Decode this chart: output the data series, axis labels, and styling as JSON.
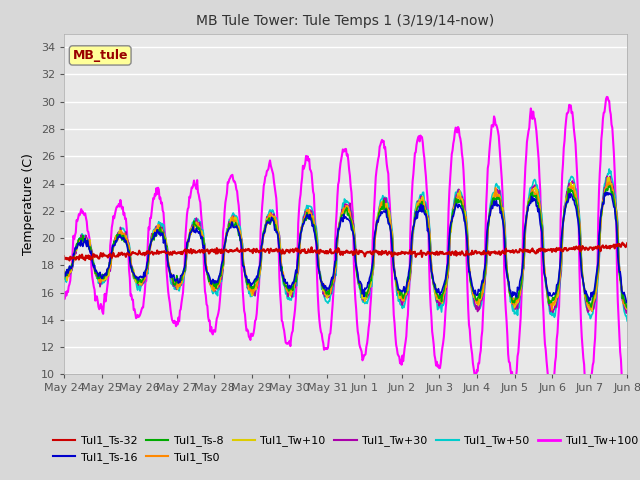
{
  "title": "MB Tule Tower: Tule Temps 1 (3/19/14-now)",
  "ylabel": "Temperature (C)",
  "ylim": [
    10,
    35
  ],
  "yticks": [
    10,
    12,
    14,
    16,
    18,
    20,
    22,
    24,
    26,
    28,
    30,
    32,
    34
  ],
  "background_color": "#d8d8d8",
  "plot_background": "#e8e8e8",
  "grid_color": "#ffffff",
  "legend_label": "MB_tule",
  "series_order": [
    "Tul1_Ts-32",
    "Tul1_Ts-16",
    "Tul1_Ts-8",
    "Tul1_Ts0",
    "Tul1_Tw+10",
    "Tul1_Tw+30",
    "Tul1_Tw+50",
    "Tul1_Tw+100"
  ],
  "series": {
    "Tul1_Ts-32": {
      "color": "#cc0000",
      "lw": 1.5
    },
    "Tul1_Ts-16": {
      "color": "#0000cc",
      "lw": 1.2
    },
    "Tul1_Ts-8": {
      "color": "#00aa00",
      "lw": 1.2
    },
    "Tul1_Ts0": {
      "color": "#ff8800",
      "lw": 1.2
    },
    "Tul1_Tw+10": {
      "color": "#ddcc00",
      "lw": 1.2
    },
    "Tul1_Tw+30": {
      "color": "#aa00aa",
      "lw": 1.2
    },
    "Tul1_Tw+50": {
      "color": "#00cccc",
      "lw": 1.2
    },
    "Tul1_Tw+100": {
      "color": "#ff00ff",
      "lw": 1.5
    }
  },
  "legend_order": [
    "Tul1_Ts-32",
    "Tul1_Ts-16",
    "Tul1_Ts-8",
    "Tul1_Ts0",
    "Tul1_Tw+10",
    "Tul1_Tw+30",
    "Tul1_Tw+50",
    "Tul1_Tw+100"
  ],
  "xtick_labels": [
    "May 24",
    "May 25",
    "May 26",
    "May 27",
    "May 28",
    "May 29",
    "May 30",
    "May 31",
    "Jun 1",
    "Jun 2",
    "Jun 3",
    "Jun 4",
    "Jun 5",
    "Jun 6",
    "Jun 7",
    "Jun 8"
  ],
  "base_temp": 18.5,
  "trend_slope": 0.065,
  "n_days": 15,
  "pts_per_day": 48
}
